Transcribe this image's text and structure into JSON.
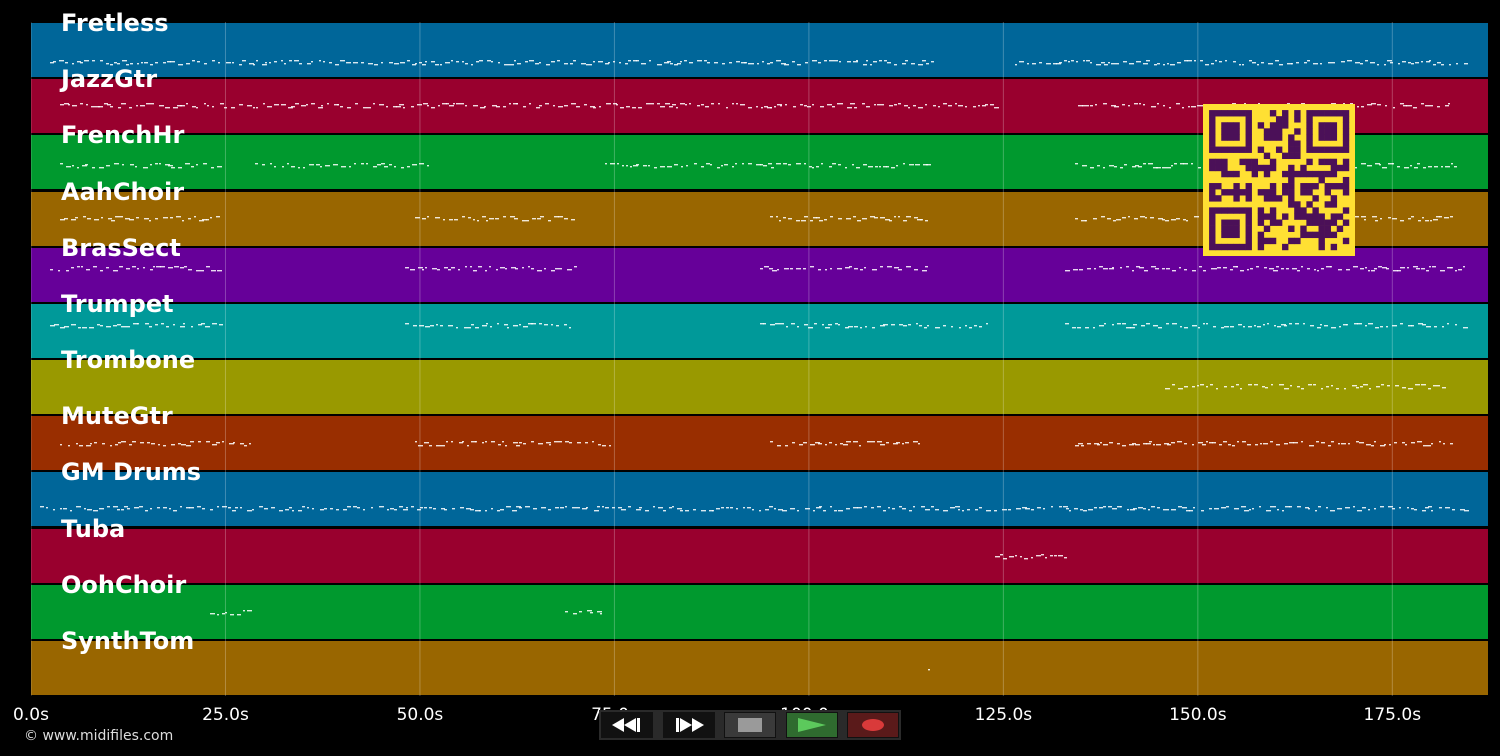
{
  "tracks": [
    {
      "name": "Fretless",
      "color": "#006699"
    },
    {
      "name": "JazzGtr",
      "color": "#99002e"
    },
    {
      "name": "FrenchHr",
      "color": "#00992e"
    },
    {
      "name": "AahChoir",
      "color": "#996600"
    },
    {
      "name": "BrasSect",
      "color": "#660099"
    },
    {
      "name": "Trumpet",
      "color": "#009999"
    },
    {
      "name": "Trombone",
      "color": "#999900"
    },
    {
      "name": "MuteGtr",
      "color": "#992e00"
    },
    {
      "name": "GM Drums",
      "color": "#006699"
    },
    {
      "name": "Tuba",
      "color": "#99002e"
    },
    {
      "name": "OohChoir",
      "color": "#00992e"
    },
    {
      "name": "SynthTom",
      "color": "#996600"
    }
  ],
  "timeline": {
    "max_seconds": 187.3,
    "ticks": [
      {
        "value": 0,
        "label": "0.0s"
      },
      {
        "value": 25,
        "label": "25.0s"
      },
      {
        "value": 50,
        "label": "50.0s"
      },
      {
        "value": 75,
        "label": "75.0s"
      },
      {
        "value": 100,
        "label": "100.0s"
      },
      {
        "value": 125,
        "label": "125.0s"
      },
      {
        "value": 150,
        "label": "150.0s"
      },
      {
        "value": 175,
        "label": "175.0s"
      }
    ]
  },
  "footer": {
    "copyright": "© www.midifiles.com"
  },
  "controls": {
    "rewind_icon": "rewind-icon",
    "fast_forward_icon": "fast-forward-icon",
    "stop_icon": "stop-icon",
    "play_icon": "play-icon",
    "record_icon": "record-icon",
    "play_color": "#5cc95c",
    "record_color": "#d93a3a"
  },
  "overlay": {
    "qr_color": "#ffe033",
    "qr_dark": "#4b1058"
  }
}
